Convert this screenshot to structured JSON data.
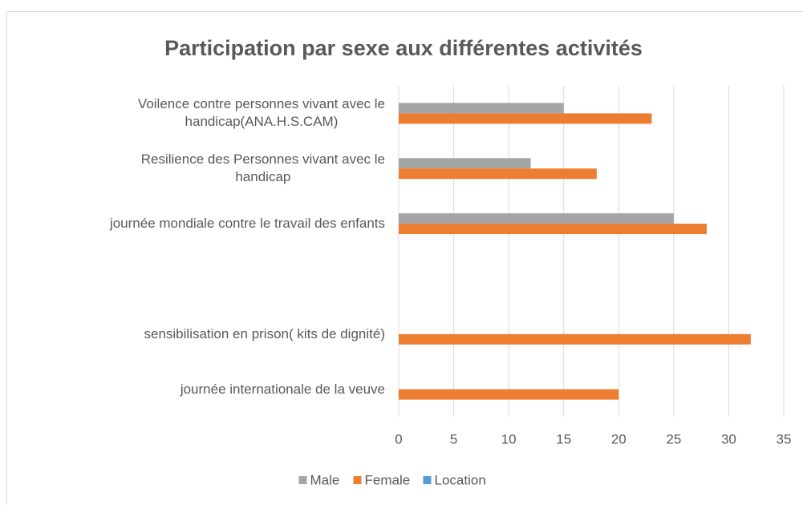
{
  "chart_data": {
    "type": "hbar",
    "title": "Participation par sexe aux différentes activités",
    "categories": [
      "Voilence contre personnes vivant avec le\nhandicap(ANA.H.S.CAM)",
      "Resilience des Personnes vivant avec le\nhandicap",
      "journée mondiale contre le travail des enfants",
      null,
      "sensibilisation en prison( kits de dignité)",
      "journée internationale de la veuve"
    ],
    "series": [
      {
        "name": "Male",
        "color": "#a5a5a5",
        "values": [
          15,
          12,
          25,
          null,
          null,
          null
        ]
      },
      {
        "name": "Female",
        "color": "#ed7d31",
        "values": [
          23,
          18,
          28,
          null,
          32,
          20
        ]
      },
      {
        "name": "Location",
        "color": "#5b9bd5",
        "values": [
          null,
          null,
          null,
          null,
          null,
          null
        ]
      }
    ],
    "xlim": [
      0,
      35
    ],
    "xticks": [
      0,
      5,
      10,
      15,
      20,
      25,
      30,
      35
    ],
    "grid": true,
    "legend": "bottom"
  }
}
